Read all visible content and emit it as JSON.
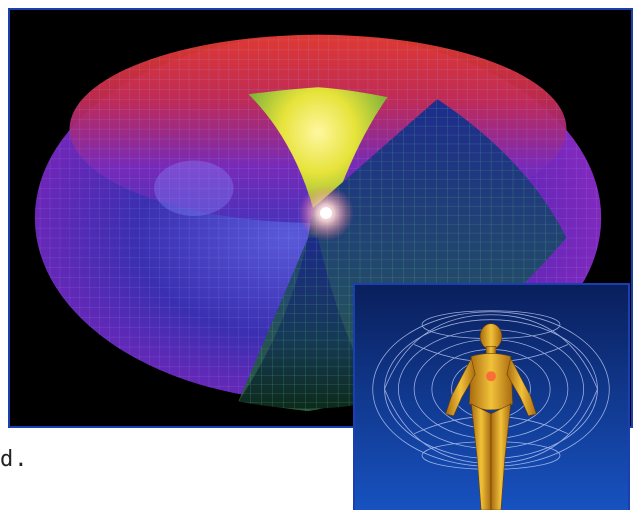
{
  "caption": {
    "fragment": "d."
  },
  "images": {
    "main": {
      "subject": "torus-energy-field",
      "colors": {
        "outer_purple": "#7a2fc8",
        "outer_blue": "#2d2fb8",
        "top_red": "#d8201e",
        "top_yellow": "#f0e23a",
        "inner_green": "#3fa66a",
        "core_glow": "#fff4f0",
        "background": "#000000"
      }
    },
    "inset": {
      "subject": "human-figure-in-torus-field",
      "colors": {
        "background_top": "#0a1f5c",
        "background_bottom": "#1752c0",
        "wire": "#c9d6ff",
        "figure": "#e7a21b"
      }
    }
  }
}
